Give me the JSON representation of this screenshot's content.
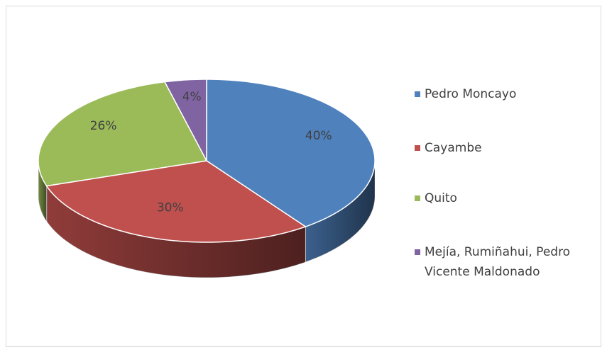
{
  "chart_data": {
    "type": "pie3d",
    "categories": [
      "Pedro Moncayo",
      "Cayambe",
      "Quito",
      "Mejía, Rumiñahui, Pedro Vicente Maldonado"
    ],
    "values": [
      40,
      30,
      26,
      4
    ],
    "value_labels": [
      "40%",
      "30%",
      "26%",
      "4%"
    ],
    "colors": [
      "#4f81bd",
      "#c0504d",
      "#9bbb59",
      "#8064a2"
    ],
    "legend": "right"
  }
}
